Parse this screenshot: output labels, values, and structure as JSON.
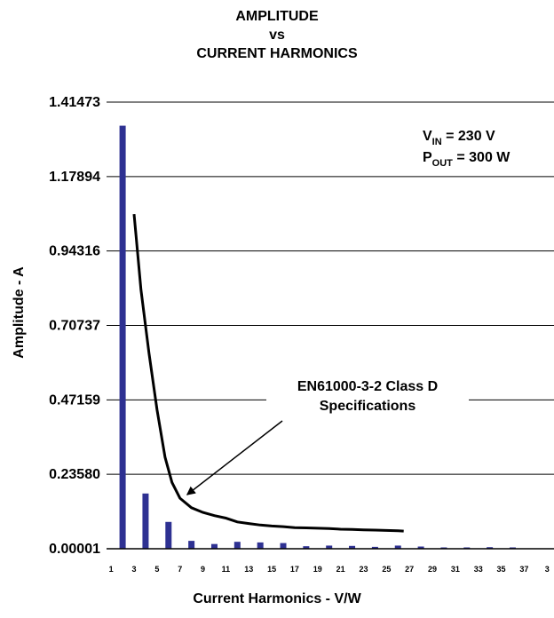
{
  "chart_data": {
    "type": "bar",
    "title_lines": [
      "AMPLITUDE",
      "vs",
      "CURRENT HARMONICS"
    ],
    "xlabel": "Current Harmonics - V/W",
    "ylabel": "Amplitude - A",
    "yticks": [
      "0.00001",
      "0.23580",
      "0.47159",
      "0.70737",
      "0.94316",
      "1.17894",
      "1.41473"
    ],
    "ylim": [
      1e-05,
      1.41473
    ],
    "xticks": [
      "1",
      "3",
      "5",
      "7",
      "9",
      "11",
      "13",
      "15",
      "17",
      "19",
      "21",
      "23",
      "25",
      "27",
      "29",
      "31",
      "33",
      "35",
      "37",
      "3"
    ],
    "grid": "horizontal",
    "bar_color": "#2e3192",
    "bars": {
      "x": [
        2,
        4,
        6,
        8,
        10,
        12,
        14,
        16,
        18,
        20,
        22,
        24,
        26,
        28,
        30,
        32,
        34,
        36
      ],
      "values": [
        1.34,
        0.175,
        0.085,
        0.025,
        0.015,
        0.022,
        0.02,
        0.018,
        0.008,
        0.01,
        0.009,
        0.006,
        0.01,
        0.007,
        0.004,
        0.003,
        0.005,
        0.004
      ]
    },
    "limit_line": {
      "x": [
        3,
        3.6,
        4.3,
        5,
        5.7,
        6.3,
        7,
        8,
        9,
        10,
        11,
        12,
        13,
        14,
        15,
        16,
        17,
        18,
        19,
        20,
        21,
        22,
        23,
        24,
        25,
        26,
        26.5
      ],
      "values": [
        1.06,
        0.82,
        0.62,
        0.44,
        0.29,
        0.21,
        0.16,
        0.13,
        0.115,
        0.105,
        0.097,
        0.085,
        0.08,
        0.075,
        0.072,
        0.07,
        0.067,
        0.066,
        0.065,
        0.064,
        0.062,
        0.061,
        0.06,
        0.059,
        0.058,
        0.057,
        0.056
      ]
    },
    "annotation": {
      "lines": [
        "EN61000-3-2 Class D",
        "Specifications"
      ],
      "arrow_target": {
        "x": 7,
        "y": 0.16
      }
    },
    "conditions": {
      "vin": {
        "main": "V",
        "sub": "IN",
        "rest": " = 230 V"
      },
      "pout": {
        "main": "P",
        "sub": "OUT",
        "rest": " = 300 W"
      }
    }
  }
}
